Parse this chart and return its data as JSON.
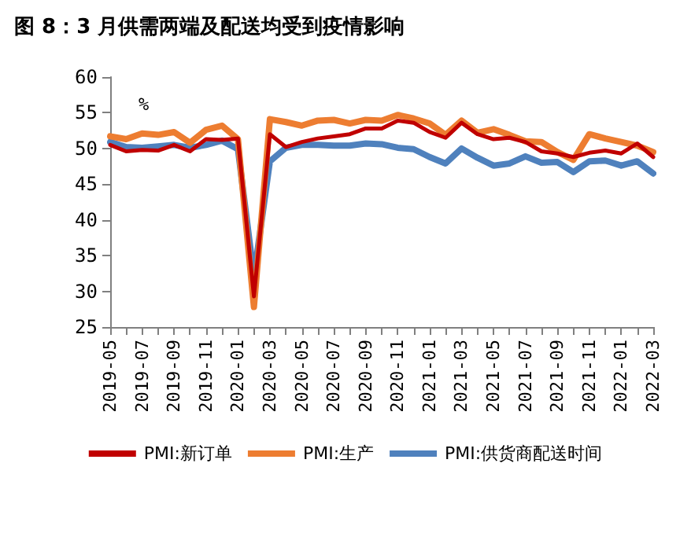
{
  "chart_data": {
    "type": "line",
    "title": "图 8：3 月供需两端及配送均受到疫情影响",
    "ylabel": "%",
    "categories": [
      "2019-05",
      null,
      "2019-07",
      null,
      "2019-09",
      null,
      "2019-11",
      null,
      "2020-01",
      null,
      "2020-03",
      null,
      "2020-05",
      null,
      "2020-07",
      null,
      "2020-09",
      null,
      "2020-11",
      null,
      "2021-01",
      null,
      "2021-03",
      null,
      "2021-05",
      null,
      "2021-07",
      null,
      "2021-09",
      null,
      "2021-11",
      null,
      "2022-01",
      null,
      "2022-03"
    ],
    "series": [
      {
        "name": "PMI:新订单",
        "color": "#c00000",
        "values": [
          50.5,
          49.6,
          49.8,
          49.7,
          50.5,
          49.6,
          51.3,
          51.2,
          51.4,
          29.3,
          52.0,
          50.2,
          50.9,
          51.4,
          51.7,
          52.0,
          52.8,
          52.8,
          53.9,
          53.6,
          52.3,
          51.5,
          53.6,
          52.0,
          51.3,
          51.5,
          50.9,
          49.6,
          49.3,
          48.8,
          49.4,
          49.7,
          49.3,
          50.7,
          48.8
        ]
      },
      {
        "name": "PMI:生产",
        "color": "#ed7d31",
        "values": [
          51.7,
          51.3,
          52.1,
          51.9,
          52.3,
          50.8,
          52.6,
          53.2,
          51.3,
          27.8,
          54.1,
          53.7,
          53.2,
          53.9,
          54.0,
          53.5,
          54.0,
          53.9,
          54.7,
          54.2,
          53.5,
          51.9,
          53.9,
          52.2,
          52.7,
          51.9,
          51.0,
          50.9,
          49.5,
          48.4,
          52.0,
          51.4,
          50.9,
          50.4,
          49.5
        ]
      },
      {
        "name": "PMI:供货商配送时间",
        "color": "#4f81bd",
        "values": [
          50.9,
          50.2,
          50.1,
          50.3,
          50.5,
          50.1,
          50.5,
          51.1,
          49.9,
          32.1,
          48.2,
          50.1,
          50.5,
          50.5,
          50.4,
          50.4,
          50.7,
          50.6,
          50.1,
          49.9,
          48.8,
          47.9,
          50.0,
          48.7,
          47.6,
          47.9,
          48.9,
          48.0,
          48.1,
          46.7,
          48.2,
          48.3,
          47.6,
          48.2,
          46.5
        ]
      }
    ],
    "ylim": [
      25,
      60
    ],
    "yticks": [
      25,
      30,
      35,
      40,
      45,
      50,
      55,
      60
    ],
    "grid": false,
    "legend": "bottom",
    "marker": "none",
    "line_style": "solid"
  }
}
